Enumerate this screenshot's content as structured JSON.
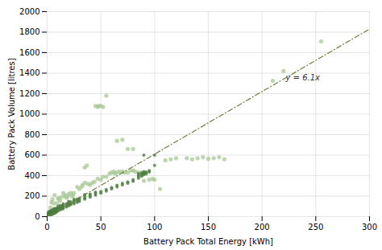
{
  "chart_data": {
    "type": "scatter",
    "xlabel": "Battery Pack Total Energy [kWh]",
    "ylabel": "Battery Pack Volume [litres]",
    "xlim": [
      0,
      300
    ],
    "ylim": [
      0,
      2000
    ],
    "xticks": [
      0,
      50,
      100,
      150,
      200,
      250,
      300
    ],
    "yticks": [
      0,
      200,
      400,
      600,
      800,
      1000,
      1200,
      1400,
      1600,
      1800,
      2000
    ],
    "grid": true,
    "series": [
      {
        "type": "scatter",
        "marker": "o",
        "color": "#a8c896",
        "x": [
          2,
          3,
          4,
          5,
          6,
          7,
          8,
          9,
          10,
          11,
          12,
          13,
          15,
          16,
          17,
          18,
          19,
          20,
          22,
          23,
          24,
          25,
          28,
          30,
          32,
          33,
          35,
          38,
          40,
          42,
          44,
          47,
          50,
          52,
          55,
          58,
          60,
          62,
          63,
          65,
          67,
          70,
          72,
          75,
          78,
          80,
          82,
          85,
          88,
          90,
          92,
          95,
          98,
          100,
          105,
          110,
          115,
          120,
          130,
          135,
          140,
          145,
          150,
          155,
          160,
          165,
          45,
          48,
          50,
          52,
          47,
          55,
          35,
          37,
          65,
          70,
          75,
          80,
          210,
          220,
          255
        ],
        "values": [
          50,
          90,
          140,
          170,
          130,
          210,
          60,
          130,
          180,
          170,
          155,
          190,
          230,
          200,
          210,
          185,
          195,
          220,
          230,
          200,
          210,
          230,
          290,
          270,
          290,
          310,
          330,
          320,
          310,
          330,
          340,
          370,
          360,
          390,
          390,
          420,
          430,
          440,
          420,
          430,
          440,
          440,
          430,
          430,
          450,
          450,
          440,
          430,
          430,
          350,
          420,
          360,
          370,
          360,
          270,
          550,
          560,
          570,
          570,
          560,
          570,
          580,
          565,
          570,
          580,
          560,
          1080,
          1080,
          1080,
          1070,
          1070,
          1180,
          480,
          500,
          740,
          750,
          660,
          660,
          1325,
          1420,
          1710
        ]
      },
      {
        "type": "scatter",
        "marker": "o",
        "color": "#4a7c3f",
        "x": [
          1,
          1,
          1,
          1,
          1,
          1,
          1,
          2,
          2,
          2,
          2,
          2,
          3,
          3,
          3,
          3,
          3,
          4,
          4,
          4,
          4,
          4,
          5,
          5,
          5,
          5,
          6,
          6,
          6,
          6,
          7,
          7,
          7,
          7,
          8,
          8,
          8,
          9,
          9,
          9,
          10,
          10,
          10,
          10,
          12,
          12,
          12,
          12,
          14,
          14,
          14,
          15,
          15,
          15,
          15,
          18,
          18,
          18,
          20,
          20,
          20,
          20,
          22,
          22,
          22,
          25,
          25,
          25,
          25,
          28,
          28,
          28,
          30,
          30,
          30,
          35,
          35,
          35,
          35,
          40,
          40,
          40,
          45,
          45,
          45,
          50,
          50,
          55,
          55,
          60,
          60,
          65,
          65,
          70,
          70,
          75,
          75,
          80,
          80,
          85,
          85,
          85,
          85,
          88,
          88,
          88,
          90,
          90,
          90,
          90,
          92,
          92,
          95,
          95,
          100,
          100
        ],
        "values": [
          5,
          10,
          15,
          20,
          25,
          30,
          40,
          10,
          20,
          30,
          40,
          50,
          15,
          25,
          35,
          45,
          55,
          20,
          30,
          40,
          50,
          60,
          25,
          35,
          50,
          65,
          30,
          45,
          60,
          75,
          35,
          50,
          65,
          80,
          40,
          55,
          70,
          50,
          65,
          80,
          55,
          70,
          85,
          100,
          65,
          80,
          95,
          110,
          75,
          90,
          105,
          80,
          95,
          110,
          125,
          95,
          110,
          125,
          105,
          120,
          135,
          150,
          115,
          130,
          145,
          125,
          140,
          155,
          170,
          140,
          155,
          170,
          150,
          165,
          180,
          170,
          185,
          200,
          215,
          190,
          205,
          220,
          210,
          225,
          240,
          230,
          245,
          250,
          265,
          270,
          285,
          290,
          305,
          310,
          325,
          325,
          340,
          345,
          360,
          375,
          390,
          405,
          420,
          395,
          410,
          425,
          410,
          425,
          440,
          600,
          420,
          435,
          435,
          450,
          500,
          600
        ]
      },
      {
        "type": "line",
        "line_style": "dashdot",
        "color": "#6b7c3a",
        "x": [
          0,
          300
        ],
        "values": [
          0,
          1830
        ]
      }
    ],
    "annotations": [
      {
        "text": "y = 6.1x",
        "x": 222,
        "y": 1330
      }
    ]
  }
}
